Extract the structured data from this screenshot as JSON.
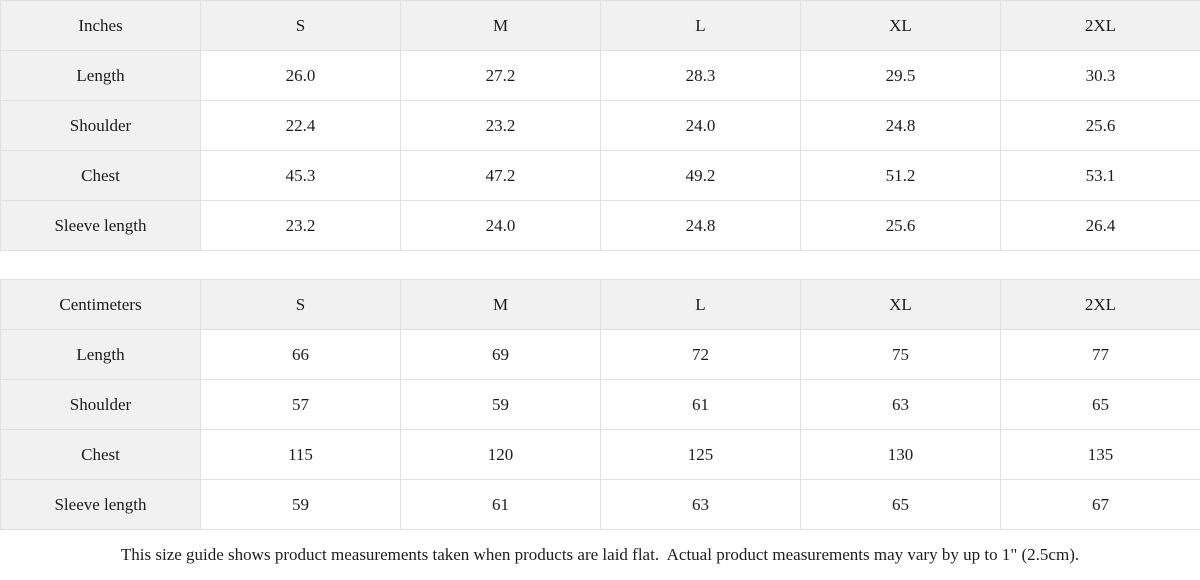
{
  "style": {
    "header_bg": "#f1f1f1",
    "cell_bg": "#ffffff",
    "border_color": "#e0e0e0",
    "text_color": "#1c1c1c"
  },
  "size_guide": {
    "sizes": [
      "S",
      "M",
      "L",
      "XL",
      "2XL"
    ],
    "inches": {
      "unit": "Inches",
      "rows": [
        {
          "label": "Length",
          "values": [
            "26.0",
            "27.2",
            "28.3",
            "29.5",
            "30.3"
          ]
        },
        {
          "label": "Shoulder",
          "values": [
            "22.4",
            "23.2",
            "24.0",
            "24.8",
            "25.6"
          ]
        },
        {
          "label": "Chest",
          "values": [
            "45.3",
            "47.2",
            "49.2",
            "51.2",
            "53.1"
          ]
        },
        {
          "label": "Sleeve length",
          "values": [
            "23.2",
            "24.0",
            "24.8",
            "25.6",
            "26.4"
          ]
        }
      ]
    },
    "centimeters": {
      "unit": "Centimeters",
      "rows": [
        {
          "label": "Length",
          "values": [
            "66",
            "69",
            "72",
            "75",
            "77"
          ]
        },
        {
          "label": "Shoulder",
          "values": [
            "57",
            "59",
            "61",
            "63",
            "65"
          ]
        },
        {
          "label": "Chest",
          "values": [
            "115",
            "120",
            "125",
            "130",
            "135"
          ]
        },
        {
          "label": "Sleeve length",
          "values": [
            "59",
            "61",
            "63",
            "65",
            "67"
          ]
        }
      ]
    },
    "note": "This size guide shows product measurements taken when products are laid flat.  Actual product measurements may vary by up to 1\" (2.5cm)."
  },
  "chart_data": [
    {
      "type": "table",
      "title": "Size guide (Inches)",
      "columns": [
        "Inches",
        "S",
        "M",
        "L",
        "XL",
        "2XL"
      ],
      "rows": [
        [
          "Length",
          26.0,
          27.2,
          28.3,
          29.5,
          30.3
        ],
        [
          "Shoulder",
          22.4,
          23.2,
          24.0,
          24.8,
          25.6
        ],
        [
          "Chest",
          45.3,
          47.2,
          49.2,
          51.2,
          53.1
        ],
        [
          "Sleeve length",
          23.2,
          24.0,
          24.8,
          25.6,
          26.4
        ]
      ]
    },
    {
      "type": "table",
      "title": "Size guide (Centimeters)",
      "columns": [
        "Centimeters",
        "S",
        "M",
        "L",
        "XL",
        "2XL"
      ],
      "rows": [
        [
          "Length",
          66,
          69,
          72,
          75,
          77
        ],
        [
          "Shoulder",
          57,
          59,
          61,
          63,
          65
        ],
        [
          "Chest",
          115,
          120,
          125,
          130,
          135
        ],
        [
          "Sleeve length",
          59,
          61,
          63,
          65,
          67
        ]
      ]
    }
  ]
}
